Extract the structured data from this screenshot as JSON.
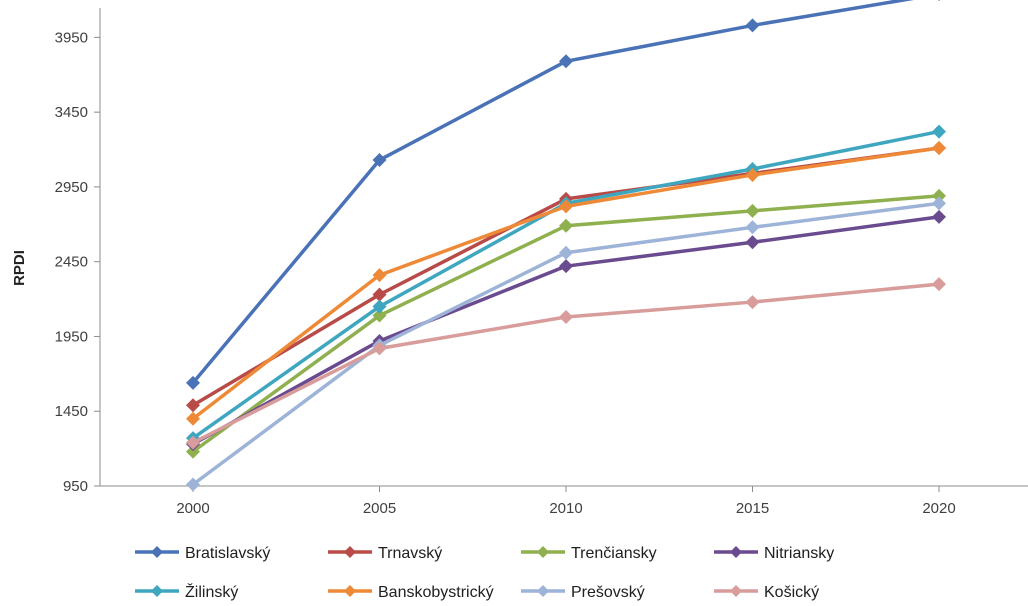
{
  "chart_data": {
    "type": "line",
    "title": "",
    "xlabel": "",
    "ylabel": "RPDI",
    "x": [
      "2000",
      "2005",
      "2010",
      "2015",
      "2020"
    ],
    "ylim": [
      950,
      4200
    ],
    "yticks": [
      950,
      1450,
      1950,
      2450,
      2950,
      3450,
      3950
    ],
    "grid": "none",
    "legend_position": "bottom",
    "series": [
      {
        "name": "Bratislavský",
        "color": "#4a73b7",
        "values": [
          1640,
          3130,
          3790,
          4030,
          4240
        ]
      },
      {
        "name": "Trnavský",
        "color": "#b84a47",
        "values": [
          1490,
          2230,
          2870,
          3040,
          3210
        ]
      },
      {
        "name": "Trenčiansky",
        "color": "#8fb04e",
        "values": [
          1180,
          2090,
          2690,
          2790,
          2890
        ]
      },
      {
        "name": "Nitriansky",
        "color": "#6b4b8f",
        "values": [
          1230,
          1920,
          2420,
          2580,
          2750
        ]
      },
      {
        "name": "Žilinský",
        "color": "#3fa6c0",
        "values": [
          1270,
          2150,
          2840,
          3070,
          3320
        ]
      },
      {
        "name": "Banskobystrický",
        "color": "#ee8a37",
        "values": [
          1400,
          2360,
          2820,
          3030,
          3210
        ]
      },
      {
        "name": "Prešovský",
        "color": "#9eb3d8",
        "values": [
          960,
          1890,
          2510,
          2680,
          2840
        ]
      },
      {
        "name": "Košický",
        "color": "#d89c9a",
        "values": [
          1240,
          1870,
          2080,
          2180,
          2300
        ]
      }
    ]
  }
}
